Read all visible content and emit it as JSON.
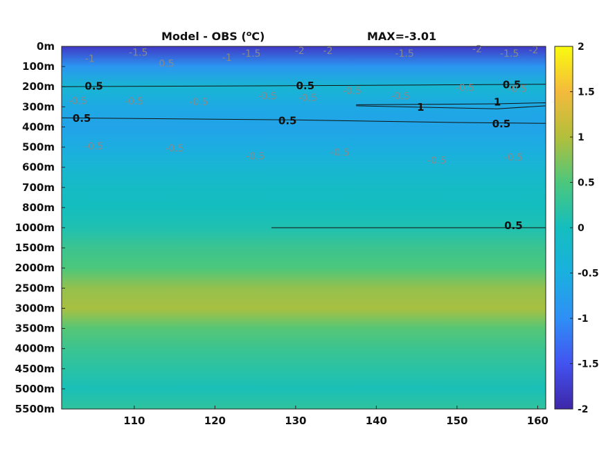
{
  "chart_data": {
    "type": "heatmap",
    "title_left": "Model - OBS (",
    "title_unit_sup": "o",
    "title_unit_end": "C)",
    "title_right": "MAX=-3.01",
    "x_ticks": [
      "110",
      "120",
      "130",
      "140",
      "150",
      "160"
    ],
    "x_tick_values": [
      110,
      120,
      130,
      140,
      150,
      160
    ],
    "xlim": [
      101,
      161
    ],
    "y_ticks": [
      "0m",
      "100m",
      "200m",
      "300m",
      "400m",
      "500m",
      "600m",
      "700m",
      "800m",
      "1000m",
      "1500m",
      "2000m",
      "2500m",
      "3000m",
      "3500m",
      "4000m",
      "4500m",
      "5000m",
      "5500m"
    ],
    "colorbar_ticks": [
      "2",
      "1.5",
      "1",
      "0.5",
      "0",
      "-0.5",
      "-1",
      "-1.5",
      "-2"
    ],
    "colorbar_values": [
      2,
      1.5,
      1,
      0.5,
      0,
      -0.5,
      -1,
      -1.5,
      -2
    ],
    "clim": [
      -2,
      2
    ],
    "colormap": "parula",
    "depth_profile": [
      {
        "depth": "0m",
        "value": -1.8
      },
      {
        "depth": "100m",
        "value": -0.9
      },
      {
        "depth": "200m",
        "value": -0.3
      },
      {
        "depth": "300m",
        "value": -0.6
      },
      {
        "depth": "400m",
        "value": -0.7
      },
      {
        "depth": "500m",
        "value": -0.55
      },
      {
        "depth": "600m",
        "value": -0.3
      },
      {
        "depth": "700m",
        "value": -0.1
      },
      {
        "depth": "800m",
        "value": 0.0
      },
      {
        "depth": "1000m",
        "value": 0.1
      },
      {
        "depth": "1500m",
        "value": 0.35
      },
      {
        "depth": "2000m",
        "value": 0.5
      },
      {
        "depth": "2500m",
        "value": 0.85
      },
      {
        "depth": "3000m",
        "value": 0.95
      },
      {
        "depth": "3500m",
        "value": 0.55
      },
      {
        "depth": "4000m",
        "value": 0.35
      },
      {
        "depth": "4500m",
        "value": 0.2
      },
      {
        "depth": "5000m",
        "value": 0.05
      },
      {
        "depth": "5500m",
        "value": 0.25
      }
    ],
    "contours_black": [
      {
        "level": "0.5",
        "points": [
          [
            101,
            2.0
          ],
          [
            130,
            1.95
          ],
          [
            145,
            1.92
          ],
          [
            161,
            1.88
          ]
        ]
      },
      {
        "level": "0.5",
        "points": [
          [
            101,
            3.55
          ],
          [
            130,
            3.65
          ],
          [
            150,
            3.78
          ],
          [
            161,
            3.82
          ]
        ]
      },
      {
        "level": "1",
        "points": [
          [
            137.5,
            2.9
          ],
          [
            155,
            2.85
          ],
          [
            161,
            2.8
          ],
          [
            161,
            2.95
          ],
          [
            155,
            3.1
          ],
          [
            137.5,
            2.95
          ]
        ]
      },
      {
        "level": "0.5",
        "points": [
          [
            127,
            9.0
          ],
          [
            161,
            9.0
          ]
        ]
      }
    ],
    "contour_labels_black": [
      {
        "text": "0.5",
        "x": 105.0,
        "y": 1.98
      },
      {
        "text": "0.5",
        "x": 131.2,
        "y": 1.95
      },
      {
        "text": "0.5",
        "x": 156.8,
        "y": 1.9
      },
      {
        "text": "1",
        "x": 145.5,
        "y": 3.03
      },
      {
        "text": "1",
        "x": 155.0,
        "y": 2.76
      },
      {
        "text": "0.5",
        "x": 103.5,
        "y": 3.57
      },
      {
        "text": "0.5",
        "x": 129.0,
        "y": 3.7
      },
      {
        "text": "0.5",
        "x": 155.5,
        "y": 3.85
      },
      {
        "text": "0.5",
        "x": 157.0,
        "y": 8.9
      }
    ],
    "contour_labels_gray": [
      {
        "text": "-1.5",
        "x": 110.5,
        "y": 0.3
      },
      {
        "text": "-1",
        "x": 104.5,
        "y": 0.6
      },
      {
        "text": "0.5",
        "x": 114.0,
        "y": 0.85
      },
      {
        "text": "-1",
        "x": 121.5,
        "y": 0.55
      },
      {
        "text": "-1.5",
        "x": 124.5,
        "y": 0.35
      },
      {
        "text": "-2",
        "x": 130.5,
        "y": 0.2
      },
      {
        "text": "-2",
        "x": 134.0,
        "y": 0.2
      },
      {
        "text": "-1.5",
        "x": 143.5,
        "y": 0.35
      },
      {
        "text": "-2",
        "x": 152.5,
        "y": 0.12
      },
      {
        "text": "-1.5",
        "x": 156.5,
        "y": 0.35
      },
      {
        "text": "-2",
        "x": 159.5,
        "y": 0.18
      },
      {
        "text": "-0.5",
        "x": 103.0,
        "y": 2.7
      },
      {
        "text": "-0.5",
        "x": 110.0,
        "y": 2.72
      },
      {
        "text": "-0.5",
        "x": 118.0,
        "y": 2.75
      },
      {
        "text": "-0.5",
        "x": 126.5,
        "y": 2.45
      },
      {
        "text": "-0.5",
        "x": 131.5,
        "y": 2.55
      },
      {
        "text": "-0.5",
        "x": 137.0,
        "y": 2.2
      },
      {
        "text": "-0.5",
        "x": 143.0,
        "y": 2.45
      },
      {
        "text": "-0.5",
        "x": 151.0,
        "y": 2.05
      },
      {
        "text": "-0.5",
        "x": 157.5,
        "y": 2.1
      },
      {
        "text": "-0.5",
        "x": 105.0,
        "y": 4.95
      },
      {
        "text": "-0.5",
        "x": 115.0,
        "y": 5.05
      },
      {
        "text": "-0.5",
        "x": 125.0,
        "y": 5.45
      },
      {
        "text": "-0.5",
        "x": 135.5,
        "y": 5.25
      },
      {
        "text": "-0.5",
        "x": 147.5,
        "y": 5.65
      },
      {
        "text": "-0.5",
        "x": 157.0,
        "y": 5.5
      }
    ]
  }
}
